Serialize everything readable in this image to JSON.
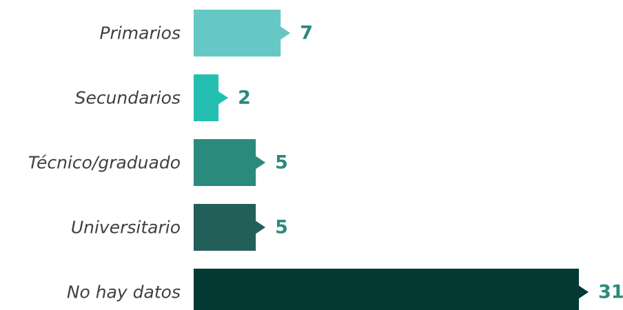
{
  "chart_data": {
    "type": "bar",
    "orientation": "horizontal",
    "categories": [
      "Primarios",
      "Secundarios",
      "Técnico/graduado",
      "Universitario",
      "No hay datos"
    ],
    "values": [
      7,
      2,
      5,
      5,
      31
    ],
    "bar_colors": [
      "#66c8c4",
      "#24bfb1",
      "#2a8a7c",
      "#225f58",
      "#033a33"
    ],
    "value_label_color": "#2a8a7c",
    "title": "",
    "xlabel": "",
    "ylabel": "",
    "xlim": [
      0,
      31
    ],
    "grid": false,
    "legend": "none"
  }
}
